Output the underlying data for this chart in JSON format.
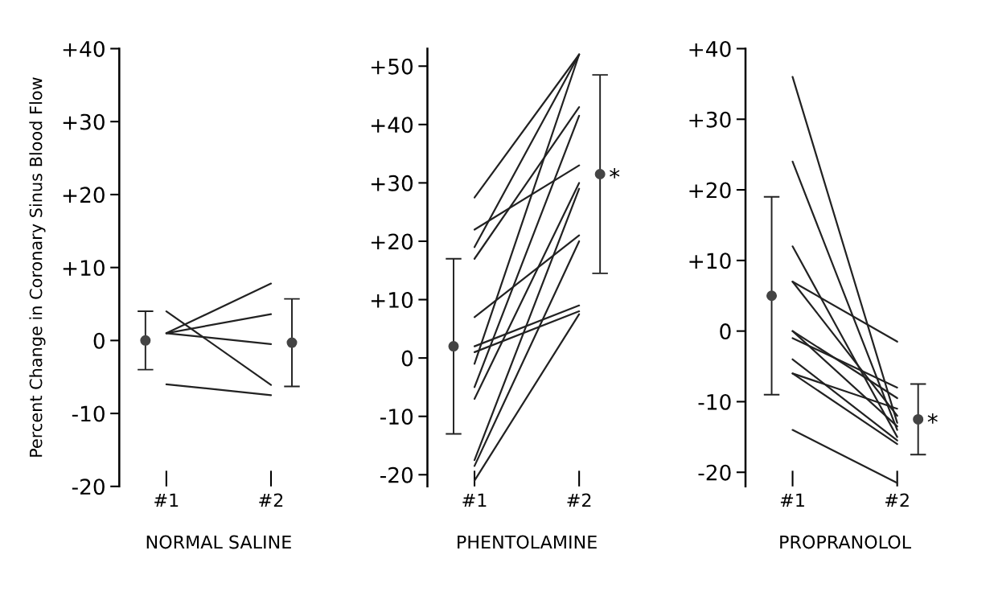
{
  "chart_data": [
    {
      "type": "line",
      "categories": [
        "#1",
        "#2"
      ],
      "xlabel": "NORMAL SALINE",
      "ylabel": "Percent Change in Coronary Sinus Blood Flow",
      "ylim": [
        -20,
        40
      ],
      "yticks": [
        {
          "value": -20,
          "label": "-20"
        },
        {
          "value": -10,
          "label": "-10"
        },
        {
          "value": 0,
          "label": "0"
        },
        {
          "value": 10,
          "label": "+10"
        },
        {
          "value": 20,
          "label": "+20"
        },
        {
          "value": 30,
          "label": "+30"
        },
        {
          "value": 40,
          "label": "+40"
        }
      ],
      "grid": false,
      "legend": false,
      "line_style": "solid",
      "series": [
        {
          "color": "#222222",
          "values": [
            1,
            7.8
          ]
        },
        {
          "color": "#222222",
          "values": [
            1,
            3.6
          ]
        },
        {
          "color": "#222222",
          "values": [
            1,
            -0.5
          ]
        },
        {
          "color": "#222222",
          "values": [
            4,
            -6.1
          ]
        },
        {
          "color": "#222222",
          "values": [
            -6,
            -7.5
          ]
        },
        {
          "type": "scatter",
          "marker": "circle",
          "color": "#444444",
          "values": [
            0,
            -0.3
          ],
          "errors": [
            4,
            6
          ]
        }
      ]
    },
    {
      "type": "line",
      "categories": [
        "#1",
        "#2"
      ],
      "xlabel": "PHENTOLAMINE",
      "ylim": [
        -22,
        53
      ],
      "yticks": [
        {
          "value": -20,
          "label": "-20"
        },
        {
          "value": -10,
          "label": "-10"
        },
        {
          "value": 0,
          "label": "0"
        },
        {
          "value": 10,
          "label": "+10"
        },
        {
          "value": 20,
          "label": "+20"
        },
        {
          "value": 30,
          "label": "+30"
        },
        {
          "value": 40,
          "label": "+40"
        },
        {
          "value": 50,
          "label": "+50"
        }
      ],
      "grid": false,
      "legend": false,
      "line_style": "solid",
      "annotations": [
        "*"
      ],
      "series": [
        {
          "color": "#222222",
          "values": [
            27.5,
            52
          ]
        },
        {
          "color": "#222222",
          "values": [
            19,
            52
          ]
        },
        {
          "color": "#222222",
          "values": [
            -1,
            52
          ]
        },
        {
          "color": "#222222",
          "values": [
            17,
            43
          ]
        },
        {
          "color": "#222222",
          "values": [
            -5,
            41.5
          ]
        },
        {
          "color": "#222222",
          "values": [
            22,
            33
          ]
        },
        {
          "color": "#222222",
          "values": [
            -7,
            30
          ]
        },
        {
          "color": "#222222",
          "values": [
            -17.5,
            29
          ]
        },
        {
          "color": "#222222",
          "values": [
            7,
            21
          ]
        },
        {
          "color": "#222222",
          "values": [
            -18.5,
            20
          ]
        },
        {
          "color": "#222222",
          "values": [
            2,
            9
          ]
        },
        {
          "color": "#222222",
          "values": [
            1,
            8
          ]
        },
        {
          "color": "#222222",
          "values": [
            -21,
            7.5
          ]
        },
        {
          "type": "scatter",
          "marker": "circle",
          "color": "#444444",
          "values": [
            2,
            31.5
          ],
          "errors": [
            15,
            17
          ]
        }
      ]
    },
    {
      "type": "line",
      "categories": [
        "#1",
        "#2"
      ],
      "xlabel": "PROPRANOLOL",
      "ylim": [
        -22,
        40
      ],
      "yticks": [
        {
          "value": -20,
          "label": "-20"
        },
        {
          "value": -10,
          "label": "-10"
        },
        {
          "value": 0,
          "label": "0"
        },
        {
          "value": 10,
          "label": "+10"
        },
        {
          "value": 20,
          "label": "+20"
        },
        {
          "value": 30,
          "label": "+30"
        },
        {
          "value": 40,
          "label": "+40"
        }
      ],
      "grid": false,
      "legend": false,
      "line_style": "solid",
      "annotations": [
        "*"
      ],
      "series": [
        {
          "color": "#222222",
          "values": [
            36,
            -13
          ]
        },
        {
          "color": "#222222",
          "values": [
            24,
            -14
          ]
        },
        {
          "color": "#222222",
          "values": [
            12,
            -15
          ]
        },
        {
          "color": "#222222",
          "values": [
            7,
            -1.5
          ]
        },
        {
          "color": "#222222",
          "values": [
            7,
            -12
          ]
        },
        {
          "color": "#222222",
          "values": [
            0,
            -9.5
          ]
        },
        {
          "color": "#222222",
          "values": [
            0,
            -13.5
          ]
        },
        {
          "color": "#222222",
          "values": [
            -1,
            -8
          ]
        },
        {
          "color": "#222222",
          "values": [
            -4,
            -15.5
          ]
        },
        {
          "color": "#222222",
          "values": [
            -6,
            -11
          ]
        },
        {
          "color": "#222222",
          "values": [
            -6,
            -16
          ]
        },
        {
          "color": "#222222",
          "values": [
            -14,
            -21.5
          ]
        },
        {
          "type": "scatter",
          "marker": "circle",
          "color": "#444444",
          "values": [
            5,
            -12.5
          ],
          "errors": [
            14,
            5
          ]
        }
      ]
    }
  ]
}
